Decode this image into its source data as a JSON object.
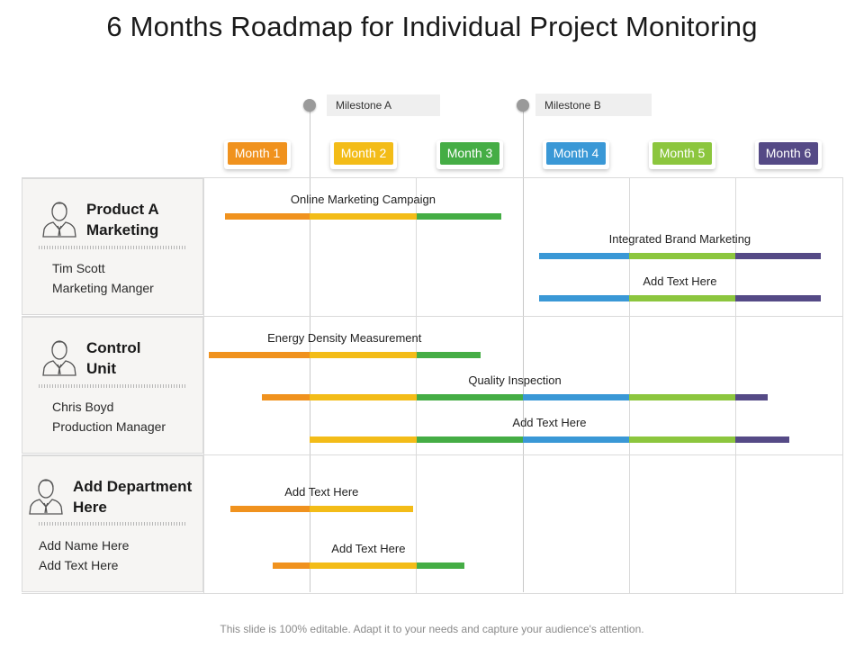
{
  "title": "6 Months Roadmap for Individual Project Monitoring",
  "milestones": [
    {
      "label": "Milestone A",
      "month_position": 0.95
    },
    {
      "label": "Milestone B",
      "month_position": 2.95
    }
  ],
  "months": [
    {
      "label": "Month 1",
      "color": "#f0921e"
    },
    {
      "label": "Month 2",
      "color": "#f3bc18"
    },
    {
      "label": "Month 3",
      "color": "#45ad45"
    },
    {
      "label": "Month 4",
      "color": "#3a98d6"
    },
    {
      "label": "Month 5",
      "color": "#8cc63e"
    },
    {
      "label": "Month 6",
      "color": "#554a86"
    }
  ],
  "departments": [
    {
      "name_line1": "Product A",
      "name_line2": "Marketing",
      "person": "Tim Scott",
      "role": "Marketing Manger"
    },
    {
      "name_line1": "Control",
      "name_line2": "Unit",
      "person": "Chris Boyd",
      "role": "Production Manager"
    },
    {
      "name_line1": "Add Department",
      "name_line2": "Here",
      "person": "Add Name Here",
      "role": "Add Text Here"
    }
  ],
  "tasks": [
    {
      "label": "Online Marketing Campaign",
      "row": 0,
      "start_month": 0.2,
      "end_month": 2.8
    },
    {
      "label": "Integrated Brand Marketing",
      "row": 0,
      "start_month": 3.15,
      "end_month": 5.8
    },
    {
      "label": "Add Text Here",
      "row": 0,
      "start_month": 3.15,
      "end_month": 5.8
    },
    {
      "label": "Energy Density Measurement",
      "row": 1,
      "start_month": 0.05,
      "end_month": 2.6
    },
    {
      "label": "Quality Inspection",
      "row": 1,
      "start_month": 0.55,
      "end_month": 5.3
    },
    {
      "label": "Add Text Here",
      "row": 1,
      "start_month": 1.0,
      "end_month": 5.5
    },
    {
      "label": "Add Text Here",
      "row": 2,
      "start_month": 0.25,
      "end_month": 1.97
    },
    {
      "label": "Add Text Here",
      "row": 2,
      "start_month": 0.65,
      "end_month": 2.45
    }
  ],
  "footer": "This slide is 100% editable. Adapt it to your needs and capture your audience's attention."
}
